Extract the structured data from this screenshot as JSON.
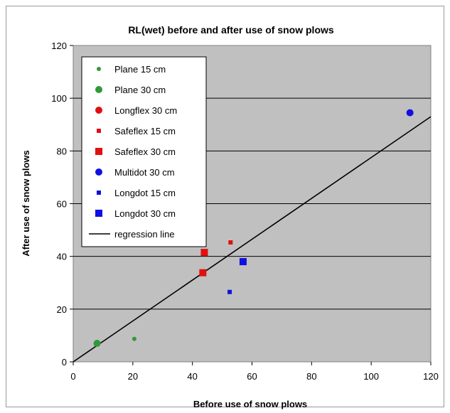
{
  "chart_data": {
    "type": "scatter",
    "title": "RL(wet) before and after use of snow plows",
    "xlabel": "Before use of snow plows",
    "ylabel": "After use of snow plows",
    "xlim": [
      0,
      120
    ],
    "ylim": [
      0,
      120
    ],
    "xticks": [
      0,
      20,
      40,
      60,
      80,
      100,
      120
    ],
    "yticks": [
      0,
      20,
      40,
      60,
      80,
      100,
      120
    ],
    "grid": "horizontal",
    "legend_position": "top-left",
    "series": [
      {
        "name": "Plane 15 cm",
        "marker": "circle",
        "size": "small",
        "color": "#2e9a3a",
        "points": [
          [
            20.5,
            8.7
          ]
        ]
      },
      {
        "name": "Plane 30 cm",
        "marker": "circle",
        "size": "large",
        "color": "#2e9a3a",
        "points": [
          [
            8,
            7
          ]
        ]
      },
      {
        "name": "Longflex 30 cm",
        "marker": "circle",
        "size": "large",
        "color": "#e01010",
        "points": []
      },
      {
        "name": "Safeflex 15 cm",
        "marker": "square",
        "size": "small",
        "color": "#e01010",
        "points": [
          [
            52.8,
            45.3
          ]
        ]
      },
      {
        "name": "Safeflex 30 cm",
        "marker": "square",
        "size": "large",
        "color": "#e01010",
        "points": [
          [
            44,
            41.5
          ],
          [
            43.5,
            33.8
          ]
        ]
      },
      {
        "name": "Multidot 30 cm",
        "marker": "circle",
        "size": "large",
        "color": "#1010e0",
        "points": [
          [
            113,
            94.5
          ]
        ]
      },
      {
        "name": "Longdot 15 cm",
        "marker": "square",
        "size": "small",
        "color": "#1010e0",
        "points": [
          [
            52.5,
            26.5
          ]
        ]
      },
      {
        "name": "Longdot 30 cm",
        "marker": "square",
        "size": "large",
        "color": "#1010e0",
        "points": [
          [
            57,
            38
          ]
        ]
      }
    ],
    "regression_line": {
      "name": "regression line",
      "color": "#000000",
      "x": [
        0,
        120
      ],
      "y": [
        0,
        93
      ]
    }
  }
}
